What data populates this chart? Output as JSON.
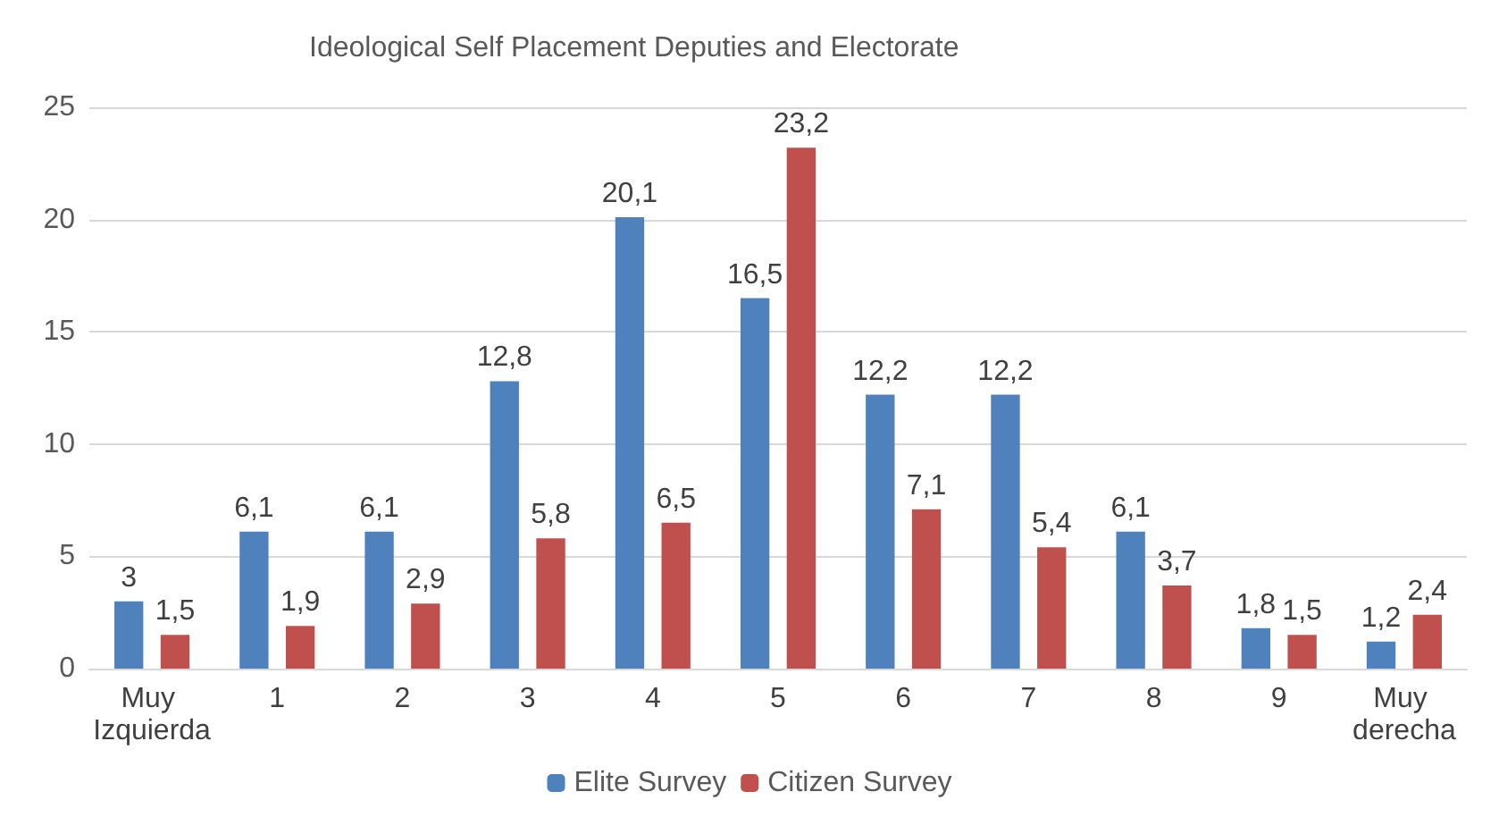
{
  "chart_data": {
    "type": "bar",
    "title": "Ideological Self Placement Deputies and Electorate",
    "categories": [
      "Muy Izquierda",
      "1",
      "2",
      "3",
      "4",
      "5",
      "6",
      "7",
      "8",
      "9",
      "Muy derecha"
    ],
    "series": [
      {
        "name": "Elite Survey",
        "color": "#4f81bd",
        "values": [
          3,
          6.1,
          6.1,
          12.8,
          20.1,
          16.5,
          12.2,
          12.2,
          6.1,
          1.8,
          1.2
        ],
        "value_labels": [
          "3",
          "6,1",
          "6,1",
          "12,8",
          "20,1",
          "16,5",
          "12,2",
          "12,2",
          "6,1",
          "1,8",
          "1,2"
        ]
      },
      {
        "name": "Citizen Survey",
        "color": "#c0504d",
        "values": [
          1.5,
          1.9,
          2.9,
          5.8,
          6.5,
          23.2,
          7.1,
          5.4,
          3.7,
          1.5,
          2.4
        ],
        "value_labels": [
          "1,5",
          "1,9",
          "2,9",
          "5,8",
          "6,5",
          "23,2",
          "7,1",
          "5,4",
          "3,7",
          "1,5",
          "2,4"
        ]
      }
    ],
    "ylim": [
      0,
      25
    ],
    "yticks": [
      0,
      5,
      10,
      15,
      20,
      25
    ],
    "grid": "y",
    "legend": "bottom"
  }
}
